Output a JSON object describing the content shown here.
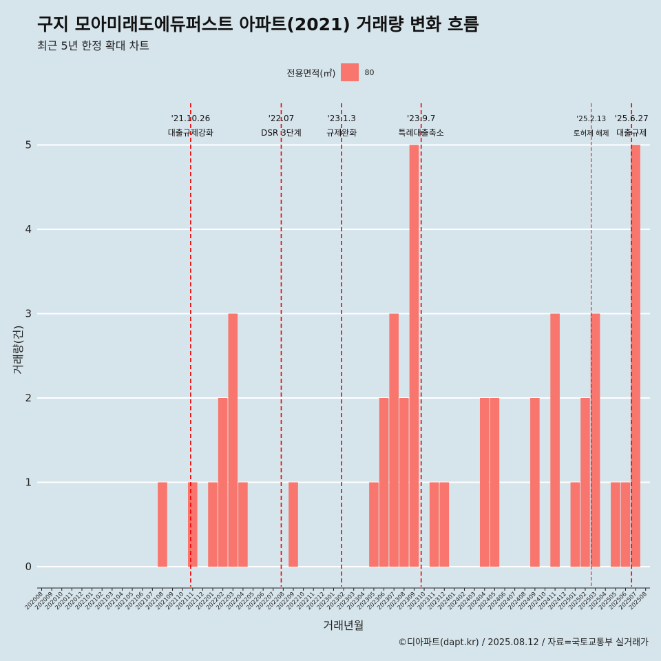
{
  "chart_data": {
    "type": "bar",
    "title": "구지 모아미래도에듀퍼스트 아파트(2021) 거래량 변화 흐름",
    "subtitle": "최근 5년 한정 확대 차트",
    "xlabel": "거래년월",
    "ylabel": "거래량(건)",
    "ylim": [
      0,
      5
    ],
    "grid": true,
    "legend": {
      "title": "전용면적(㎡)",
      "position": "top",
      "entries": [
        "80"
      ]
    },
    "series_color": "#F8766D",
    "categories": [
      "202008",
      "202009",
      "202010",
      "202011",
      "202012",
      "202101",
      "202102",
      "202103",
      "202104",
      "202105",
      "202106",
      "202107",
      "202108",
      "202109",
      "202110",
      "202111",
      "202112",
      "202201",
      "202202",
      "202203",
      "202204",
      "202205",
      "202206",
      "202207",
      "202208",
      "202209",
      "202210",
      "202211",
      "202212",
      "202301",
      "202302",
      "202303",
      "202304",
      "202305",
      "202306",
      "202307",
      "202308",
      "202309",
      "202310",
      "202311",
      "202312",
      "202401",
      "202402",
      "202403",
      "202404",
      "202405",
      "202406",
      "202407",
      "202408",
      "202409",
      "202410",
      "202411",
      "202412",
      "202501",
      "202502",
      "202503",
      "202504",
      "202505",
      "202506",
      "202507",
      "202508"
    ],
    "values": [
      0,
      0,
      0,
      0,
      0,
      0,
      0,
      0,
      0,
      0,
      0,
      0,
      1,
      0,
      0,
      1,
      0,
      1,
      2,
      3,
      1,
      0,
      0,
      0,
      0,
      1,
      0,
      0,
      0,
      0,
      0,
      0,
      0,
      1,
      2,
      3,
      2,
      5,
      0,
      1,
      1,
      0,
      0,
      0,
      2,
      2,
      0,
      0,
      0,
      2,
      0,
      3,
      0,
      1,
      2,
      3,
      0,
      1,
      1,
      5,
      0
    ],
    "yticks": [
      "0",
      "1",
      "2",
      "3",
      "4",
      "5"
    ],
    "annotations": [
      {
        "date": "'21.10.26",
        "label": "대출규제강화",
        "category_index": 14.8,
        "style": "dashed"
      },
      {
        "date": "'22.07",
        "label": "DSR 3단계",
        "category_index": 23.8,
        "style": "dashed"
      },
      {
        "date": "'23.1.3",
        "label": "규제완화",
        "category_index": 29.8,
        "style": "dashed"
      },
      {
        "date": "'23.9.7",
        "label": "특례대출축소",
        "category_index": 37.7,
        "style": "dashed"
      },
      {
        "date": "'25.2.13",
        "label": "토허제 해제",
        "category_index": 54.6,
        "style": "thin"
      },
      {
        "date": "'25.6.27",
        "label": "대출규제",
        "category_index": 58.6,
        "style": "dashed"
      }
    ]
  },
  "caption": "©디아파트(dapt.kr) / 2025.08.12 / 자료=국토교통부 실거래가"
}
